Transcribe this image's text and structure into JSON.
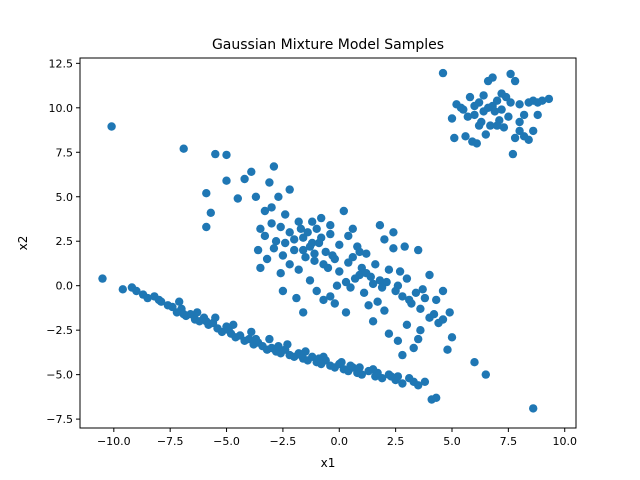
{
  "chart_data": {
    "type": "scatter",
    "title": "Gaussian Mixture Model Samples",
    "xlabel": "x1",
    "ylabel": "x2",
    "xlim": [
      -11.5,
      10.5
    ],
    "ylim": [
      -8.0,
      12.8
    ],
    "xticks": [
      -10.0,
      -7.5,
      -5.0,
      -2.5,
      0.0,
      2.5,
      5.0,
      7.5,
      10.0
    ],
    "xtick_labels": [
      "−10.0",
      "−7.5",
      "−5.0",
      "−2.5",
      "0.0",
      "2.5",
      "5.0",
      "7.5",
      "10.0"
    ],
    "yticks": [
      -7.5,
      -5.0,
      -2.5,
      0.0,
      2.5,
      5.0,
      7.5,
      10.0,
      12.5
    ],
    "ytick_labels": [
      "−7.5",
      "−5.0",
      "−2.5",
      "0.0",
      "2.5",
      "5.0",
      "7.5",
      "10.0",
      "12.5"
    ],
    "grid": false,
    "legend": "none",
    "marker_color": "#1f77b4",
    "points": [
      [
        -10.5,
        0.4
      ],
      [
        -10.1,
        8.95
      ],
      [
        -9.6,
        -0.2
      ],
      [
        -9.2,
        -0.1
      ],
      [
        -9.0,
        -0.3
      ],
      [
        -8.7,
        -0.5
      ],
      [
        -8.5,
        -0.7
      ],
      [
        -8.2,
        -0.6
      ],
      [
        -7.9,
        -0.9
      ],
      [
        -7.6,
        -1.1
      ],
      [
        -7.4,
        -1.2
      ],
      [
        -7.2,
        -1.5
      ],
      [
        -7.0,
        -1.3
      ],
      [
        -6.8,
        -1.7
      ],
      [
        -6.6,
        -1.6
      ],
      [
        -6.4,
        -1.9
      ],
      [
        -6.2,
        -2.0
      ],
      [
        -6.0,
        -1.8
      ],
      [
        -5.8,
        -2.2
      ],
      [
        -5.6,
        -2.1
      ],
      [
        -5.4,
        -2.4
      ],
      [
        -5.2,
        -2.6
      ],
      [
        -5.0,
        -2.3
      ],
      [
        -4.8,
        -2.7
      ],
      [
        -4.6,
        -2.9
      ],
      [
        -4.4,
        -2.8
      ],
      [
        -4.2,
        -3.1
      ],
      [
        -4.0,
        -3.0
      ],
      [
        -3.8,
        -3.3
      ],
      [
        -3.6,
        -3.2
      ],
      [
        -3.4,
        -3.4
      ],
      [
        -3.2,
        -3.6
      ],
      [
        -3.0,
        -3.5
      ],
      [
        -2.8,
        -3.7
      ],
      [
        -2.6,
        -3.8
      ],
      [
        -2.4,
        -3.6
      ],
      [
        -2.2,
        -3.9
      ],
      [
        -2.0,
        -4.0
      ],
      [
        -1.8,
        -3.8
      ],
      [
        -1.6,
        -4.1
      ],
      [
        -1.4,
        -4.2
      ],
      [
        -1.2,
        -4.0
      ],
      [
        -1.0,
        -4.3
      ],
      [
        -0.8,
        -4.4
      ],
      [
        -0.6,
        -4.2
      ],
      [
        -0.4,
        -4.5
      ],
      [
        -0.2,
        -4.6
      ],
      [
        0.0,
        -4.4
      ],
      [
        0.2,
        -4.7
      ],
      [
        0.4,
        -4.8
      ],
      [
        0.6,
        -4.6
      ],
      [
        0.8,
        -4.9
      ],
      [
        1.0,
        -5.0
      ],
      [
        1.3,
        -4.8
      ],
      [
        1.6,
        -5.1
      ],
      [
        1.9,
        -5.2
      ],
      [
        2.2,
        -5.0
      ],
      [
        2.5,
        -5.3
      ],
      [
        2.8,
        -5.5
      ],
      [
        3.1,
        -5.2
      ],
      [
        3.5,
        -5.6
      ],
      [
        3.8,
        -5.4
      ],
      [
        4.1,
        -6.4
      ],
      [
        4.3,
        -6.3
      ],
      [
        8.6,
        -6.9
      ],
      [
        -7.1,
        -0.9
      ],
      [
        -6.3,
        -1.5
      ],
      [
        -5.5,
        -1.8
      ],
      [
        -4.7,
        -2.2
      ],
      [
        -3.9,
        -2.6
      ],
      [
        -3.1,
        -3.0
      ],
      [
        -2.3,
        -3.3
      ],
      [
        -1.5,
        -3.7
      ],
      [
        -0.7,
        -4.0
      ],
      [
        0.1,
        -4.3
      ],
      [
        0.9,
        -4.6
      ],
      [
        1.7,
        -4.9
      ],
      [
        2.6,
        -5.1
      ],
      [
        3.3,
        -5.4
      ],
      [
        -8.0,
        -0.8
      ],
      [
        -6.9,
        -1.6
      ],
      [
        -5.9,
        -2.0
      ],
      [
        -4.9,
        -2.5
      ],
      [
        -3.7,
        -3.0
      ],
      [
        -2.7,
        -3.4
      ],
      [
        -1.7,
        -3.9
      ],
      [
        -0.9,
        -4.1
      ],
      [
        0.5,
        -4.5
      ],
      [
        1.5,
        -4.7
      ],
      [
        2.3,
        -5.1
      ],
      [
        -6.9,
        7.7
      ],
      [
        -5.5,
        7.4
      ],
      [
        -5.0,
        7.35
      ],
      [
        -5.9,
        5.2
      ],
      [
        -5.0,
        5.9
      ],
      [
        -5.7,
        4.1
      ],
      [
        -5.9,
        3.3
      ],
      [
        -4.5,
        4.9
      ],
      [
        -4.2,
        6.0
      ],
      [
        -3.9,
        6.4
      ],
      [
        -3.7,
        5.0
      ],
      [
        -3.3,
        4.2
      ],
      [
        -3.1,
        5.8
      ],
      [
        -3.0,
        4.4
      ],
      [
        -2.9,
        6.7
      ],
      [
        -2.7,
        5.0
      ],
      [
        -2.2,
        5.4
      ],
      [
        -2.4,
        4.0
      ],
      [
        -3.5,
        3.2
      ],
      [
        -3.6,
        2.0
      ],
      [
        -3.5,
        1.0
      ],
      [
        -3.3,
        2.8
      ],
      [
        -3.0,
        3.5
      ],
      [
        -2.8,
        2.5
      ],
      [
        -2.6,
        3.3
      ],
      [
        -2.5,
        1.7
      ],
      [
        -2.2,
        3.0
      ],
      [
        -2.0,
        2.6
      ],
      [
        -1.8,
        3.6
      ],
      [
        -1.6,
        2.0
      ],
      [
        -1.4,
        3.0
      ],
      [
        -1.2,
        2.4
      ],
      [
        -1.0,
        3.2
      ],
      [
        -0.8,
        2.7
      ],
      [
        -0.6,
        1.9
      ],
      [
        -0.4,
        2.9
      ],
      [
        -0.2,
        1.5
      ],
      [
        0.0,
        2.3
      ],
      [
        0.2,
        4.2
      ],
      [
        0.4,
        2.8
      ],
      [
        0.6,
        1.6
      ],
      [
        0.8,
        2.2
      ],
      [
        1.0,
        1.0
      ],
      [
        1.2,
        1.8
      ],
      [
        1.4,
        0.5
      ],
      [
        1.6,
        1.2
      ],
      [
        1.8,
        0.3
      ],
      [
        2.0,
        2.6
      ],
      [
        2.2,
        0.9
      ],
      [
        2.4,
        2.1
      ],
      [
        2.6,
        0.0
      ],
      [
        2.8,
        -0.6
      ],
      [
        3.0,
        0.4
      ],
      [
        3.2,
        -1.0
      ],
      [
        3.4,
        -0.4
      ],
      [
        3.6,
        -1.3
      ],
      [
        3.8,
        -0.7
      ],
      [
        4.0,
        -1.8
      ],
      [
        4.2,
        -1.6
      ],
      [
        4.4,
        -2.1
      ],
      [
        4.6,
        -1.9
      ],
      [
        4.6,
        -0.3
      ],
      [
        4.8,
        -3.6
      ],
      [
        5.0,
        -2.9
      ],
      [
        3.6,
        -2.5
      ],
      [
        3.5,
        -3.0
      ],
      [
        3.3,
        -3.5
      ],
      [
        3.0,
        -2.2
      ],
      [
        2.8,
        -3.9
      ],
      [
        2.6,
        -3.1
      ],
      [
        2.2,
        -2.7
      ],
      [
        1.5,
        -2.0
      ],
      [
        0.3,
        -1.5
      ],
      [
        -0.2,
        -1.0
      ],
      [
        -0.7,
        -0.8
      ],
      [
        -1.0,
        -0.3
      ],
      [
        -1.3,
        0.3
      ],
      [
        -1.8,
        0.9
      ],
      [
        -2.2,
        1.2
      ],
      [
        -2.6,
        0.7
      ],
      [
        -2.5,
        -0.3
      ],
      [
        -1.9,
        -0.7
      ],
      [
        -1.6,
        -1.5
      ],
      [
        -0.4,
        -0.6
      ],
      [
        0.5,
        -0.1
      ],
      [
        0.9,
        0.6
      ],
      [
        1.1,
        -0.4
      ],
      [
        1.3,
        -1.1
      ],
      [
        1.7,
        -0.9
      ],
      [
        2.0,
        -1.4
      ],
      [
        0.0,
        0.8
      ],
      [
        -0.5,
        1.0
      ],
      [
        -1.1,
        1.4
      ],
      [
        -1.5,
        1.6
      ],
      [
        -2.0,
        2.0
      ],
      [
        -2.4,
        2.4
      ],
      [
        -2.9,
        2.1
      ],
      [
        -3.2,
        1.5
      ],
      [
        -1.2,
        3.6
      ],
      [
        -0.8,
        3.8
      ],
      [
        -0.4,
        3.4
      ],
      [
        0.6,
        3.2
      ],
      [
        1.8,
        3.4
      ],
      [
        2.4,
        3.0
      ],
      [
        2.9,
        2.2
      ],
      [
        3.5,
        2.0
      ],
      [
        4.0,
        0.6
      ],
      [
        4.3,
        -0.8
      ],
      [
        4.9,
        -1.5
      ],
      [
        0.3,
        0.2
      ],
      [
        -0.1,
        0.0
      ],
      [
        0.7,
        0.4
      ],
      [
        1.5,
        0.1
      ],
      [
        -1.6,
        2.7
      ],
      [
        -1.3,
        2.2
      ],
      [
        -1.7,
        3.2
      ],
      [
        -0.9,
        2.4
      ],
      [
        -1.1,
        1.8
      ],
      [
        -0.7,
        1.2
      ],
      [
        -0.3,
        1.7
      ],
      [
        0.4,
        1.3
      ],
      [
        0.9,
        1.9
      ],
      [
        1.2,
        0.7
      ],
      [
        2.1,
        0.2
      ],
      [
        2.5,
        -0.3
      ],
      [
        3.1,
        -0.8
      ],
      [
        3.7,
        -0.2
      ],
      [
        1.9,
        -0.1
      ],
      [
        2.7,
        0.8
      ],
      [
        6.0,
        -4.3
      ],
      [
        6.5,
        -5.0
      ],
      [
        4.6,
        11.95
      ],
      [
        5.2,
        10.2
      ],
      [
        5.5,
        9.9
      ],
      [
        5.8,
        10.6
      ],
      [
        6.0,
        9.6
      ],
      [
        6.2,
        10.3
      ],
      [
        6.4,
        9.8
      ],
      [
        6.6,
        11.5
      ],
      [
        6.8,
        11.7
      ],
      [
        7.0,
        10.4
      ],
      [
        7.2,
        9.9
      ],
      [
        7.4,
        10.6
      ],
      [
        7.6,
        11.9
      ],
      [
        7.8,
        11.5
      ],
      [
        8.0,
        10.2
      ],
      [
        8.2,
        9.6
      ],
      [
        8.4,
        10.3
      ],
      [
        8.6,
        10.4
      ],
      [
        8.8,
        10.3
      ],
      [
        9.0,
        10.4
      ],
      [
        9.3,
        10.5
      ],
      [
        5.0,
        9.4
      ],
      [
        5.1,
        8.3
      ],
      [
        5.6,
        8.4
      ],
      [
        5.9,
        8.1
      ],
      [
        6.1,
        8.0
      ],
      [
        6.3,
        9.2
      ],
      [
        6.5,
        8.5
      ],
      [
        6.7,
        9.0
      ],
      [
        6.9,
        9.8
      ],
      [
        7.1,
        9.3
      ],
      [
        7.3,
        8.9
      ],
      [
        7.5,
        9.5
      ],
      [
        7.7,
        7.4
      ],
      [
        7.8,
        8.3
      ],
      [
        8.0,
        8.7
      ],
      [
        8.2,
        8.4
      ],
      [
        8.4,
        8.2
      ],
      [
        8.6,
        8.7
      ],
      [
        8.8,
        9.6
      ],
      [
        5.7,
        9.5
      ],
      [
        6.0,
        10.1
      ],
      [
        6.4,
        10.7
      ],
      [
        6.8,
        10.1
      ],
      [
        7.2,
        10.8
      ],
      [
        7.6,
        10.3
      ],
      [
        8.0,
        9.2
      ],
      [
        6.2,
        9.0
      ],
      [
        7.0,
        9.0
      ],
      [
        5.4,
        10.0
      ],
      [
        6.6,
        10.0
      ]
    ]
  }
}
